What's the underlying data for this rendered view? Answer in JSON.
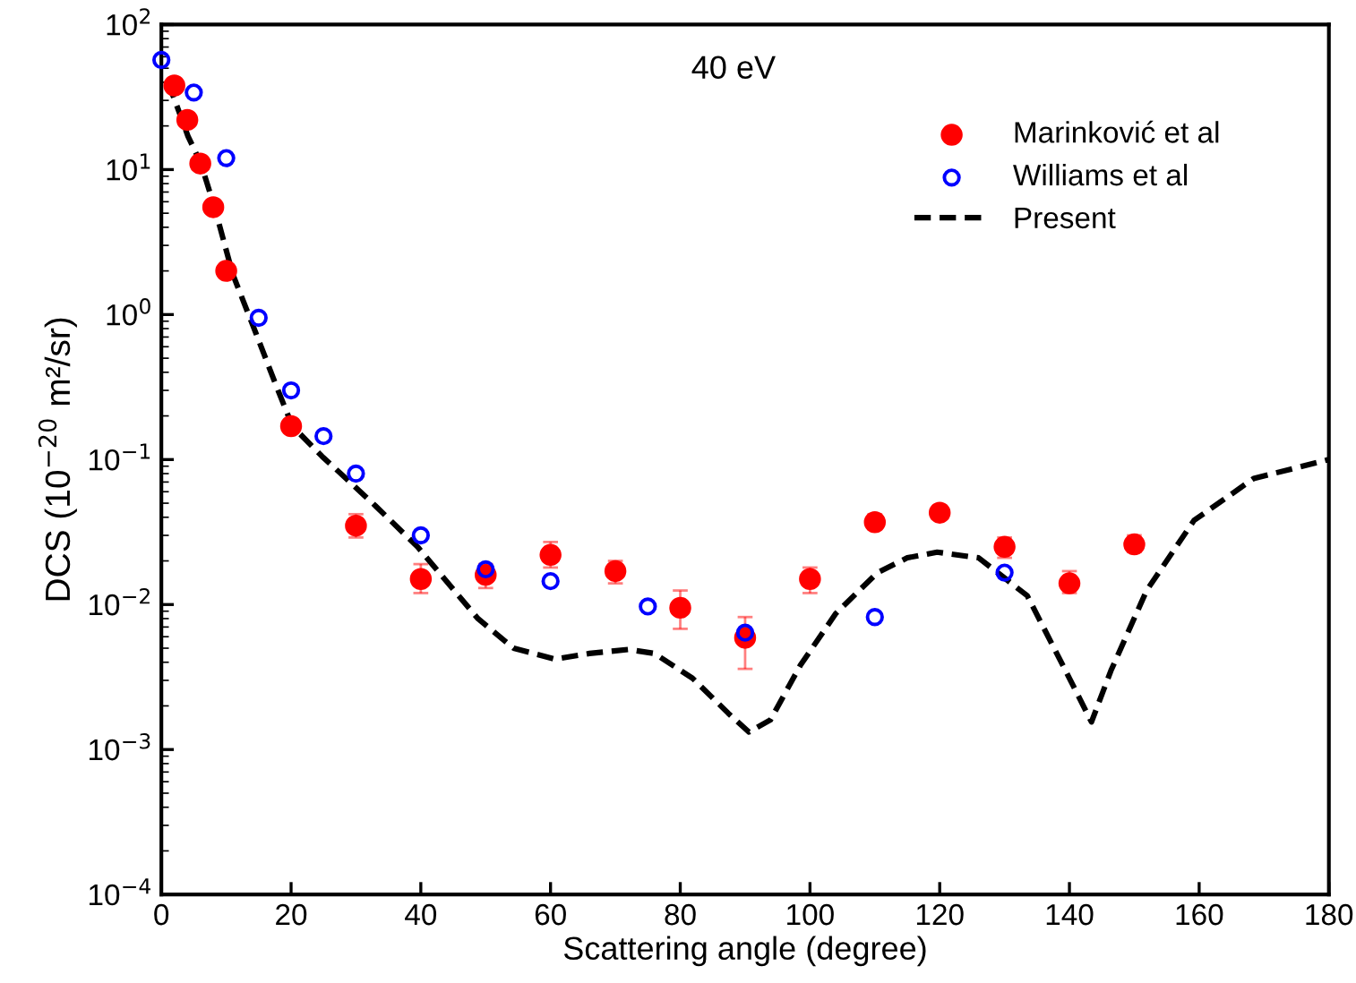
{
  "chart_data": {
    "type": "scatter",
    "xlabel": "Scattering angle (degree)",
    "ylabel": "DCS (10$^{−20}$ m²/sr)",
    "annotations": [
      "40 eV"
    ],
    "log": "y",
    "xlim": [
      0,
      180
    ],
    "xticks": [
      0,
      20,
      40,
      60,
      80,
      100,
      120,
      140,
      160,
      180
    ],
    "ylim": [
      0.0001,
      100
    ],
    "yticks": [
      {
        "value": 0.0001,
        "label": "10$^{−4}$"
      },
      {
        "value": 0.001,
        "label": "10$^{−3}$"
      },
      {
        "value": 0.01,
        "label": "10$^{−2}$"
      },
      {
        "value": 0.1,
        "label": "10$^{−1}$"
      },
      {
        "value": 1,
        "label": "10$^{0}$"
      },
      {
        "value": 10,
        "label": "10$^{1}$"
      },
      {
        "value": 100,
        "label": "10$^{2}$"
      }
    ],
    "grid": false,
    "legend": "top right",
    "series": [
      {
        "name": "Marinković et al",
        "marker": "circle",
        "color": "#ff0000",
        "x": [
          2,
          4,
          6,
          8,
          10,
          20,
          30,
          40,
          50,
          60,
          70,
          80,
          90,
          100,
          110,
          120,
          130,
          140,
          150
        ],
        "values": [
          38,
          22,
          11,
          5.5,
          2.0,
          0.17,
          0.035,
          0.015,
          0.016,
          0.022,
          0.017,
          0.0095,
          0.0059,
          0.015,
          0.037,
          0.043,
          0.025,
          0.014,
          0.026
        ],
        "errors": [
          null,
          null,
          null,
          null,
          null,
          null,
          [
            0.029,
            0.042
          ],
          [
            0.012,
            0.019
          ],
          [
            0.013,
            0.019
          ],
          [
            0.018,
            0.027
          ],
          [
            0.014,
            0.02
          ],
          [
            0.0068,
            0.0125
          ],
          [
            0.0036,
            0.0082
          ],
          [
            0.012,
            0.018
          ],
          [
            0.033,
            0.042
          ],
          [
            0.039,
            0.048
          ],
          [
            0.021,
            0.029
          ],
          [
            0.012,
            0.017
          ],
          [
            0.023,
            0.03
          ]
        ]
      },
      {
        "name": "Williams et al",
        "marker": "circle",
        "color": "#0000ff",
        "x": [
          0,
          5,
          10,
          15,
          20,
          25,
          30,
          40,
          50,
          60,
          75,
          90,
          110,
          130
        ],
        "values": [
          57,
          34,
          12,
          0.95,
          0.3,
          0.145,
          0.08,
          0.03,
          0.0175,
          0.0145,
          0.0097,
          0.0064,
          0.0082,
          0.0166
        ]
      },
      {
        "name": "Present",
        "type": "line",
        "line_style": "dashed",
        "color": "#000000",
        "x": [
          1,
          2.2,
          4.1,
          6.1,
          8.3,
          11,
          14.6,
          17.4,
          20.2,
          24.8,
          30,
          33,
          39.5,
          48.8,
          54.3,
          60.7,
          66,
          72,
          76,
          81.9,
          87.4,
          90.6,
          93.9,
          98.5,
          104,
          110.4,
          115,
          119.6,
          126,
          133.5,
          139,
          143.4,
          146.4,
          151.9,
          159.2,
          168.4,
          180
        ],
        "values": [
          40,
          29,
          17,
          11,
          5.3,
          1.9,
          0.74,
          0.35,
          0.17,
          0.105,
          0.064,
          0.048,
          0.025,
          0.008,
          0.005,
          0.0042,
          0.0046,
          0.0049,
          0.0046,
          0.0031,
          0.00178,
          0.00132,
          0.0016,
          0.0038,
          0.0087,
          0.0166,
          0.021,
          0.023,
          0.021,
          0.0115,
          0.0038,
          0.00155,
          0.0035,
          0.0125,
          0.038,
          0.074,
          0.1
        ]
      }
    ]
  }
}
